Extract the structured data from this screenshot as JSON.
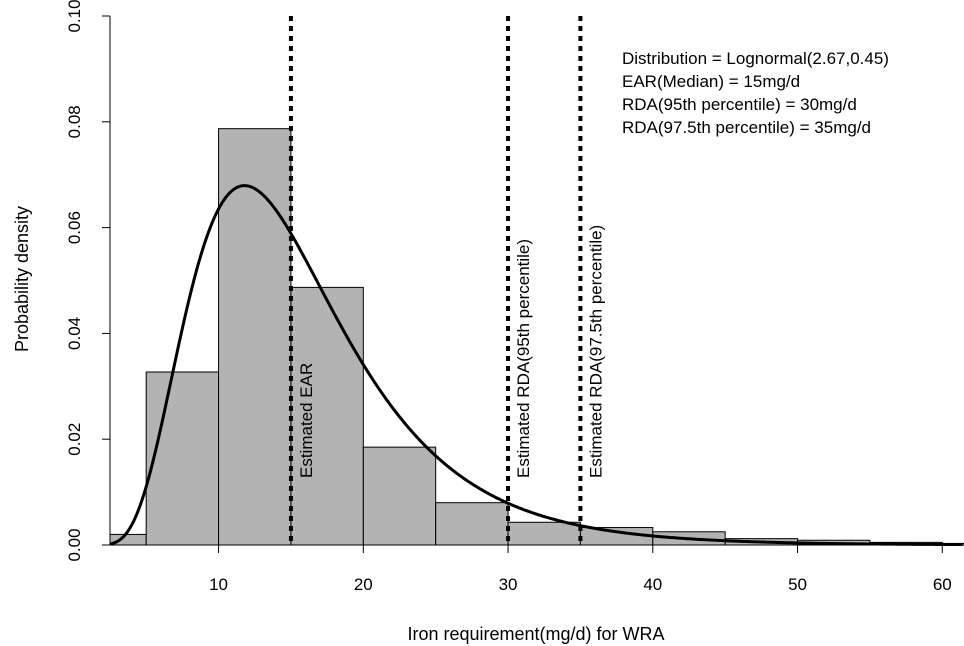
{
  "chart_data": {
    "type": "bar",
    "subtype": "histogram-with-density-curve",
    "xlabel": "Iron requirement(mg/d) for WRA",
    "ylabel": "Probability density",
    "xlim": [
      2.5,
      61.5
    ],
    "ylim": [
      0,
      0.1
    ],
    "x_ticks": [
      10,
      20,
      30,
      40,
      50,
      60
    ],
    "y_ticks": [
      "0.00",
      "0.02",
      "0.04",
      "0.06",
      "0.08",
      "0.10"
    ],
    "bins": [
      {
        "start": 0,
        "end": 5,
        "density": 0.002
      },
      {
        "start": 5,
        "end": 10,
        "density": 0.0327
      },
      {
        "start": 10,
        "end": 15,
        "density": 0.0787
      },
      {
        "start": 15,
        "end": 20,
        "density": 0.0487
      },
      {
        "start": 20,
        "end": 25,
        "density": 0.0185
      },
      {
        "start": 25,
        "end": 30,
        "density": 0.008
      },
      {
        "start": 30,
        "end": 35,
        "density": 0.0043
      },
      {
        "start": 35,
        "end": 40,
        "density": 0.0033
      },
      {
        "start": 40,
        "end": 45,
        "density": 0.0025
      },
      {
        "start": 45,
        "end": 50,
        "density": 0.0012
      },
      {
        "start": 50,
        "end": 55,
        "density": 0.0009
      },
      {
        "start": 55,
        "end": 60,
        "density": 0.0005
      },
      {
        "start": 60,
        "end": 65,
        "density": 0.0003
      }
    ],
    "bar_fill": "#b3b3b3",
    "curve": {
      "distribution": "lognormal",
      "meanlog": 2.67,
      "sdlog": 0.45
    },
    "vertical_lines": [
      {
        "x": 15,
        "label": "Estimated EAR"
      },
      {
        "x": 30,
        "label": "Estimated RDA(95th percentile)"
      },
      {
        "x": 35,
        "label": "Estimated RDA(97.5th percentile)"
      }
    ],
    "legend_position": "top-right",
    "annotations": [
      "Distribution = Lognormal(2.67,0.45)",
      "EAR(Median) = 15mg/d",
      "RDA(95th percentile) = 30mg/d",
      "RDA(97.5th percentile) = 35mg/d"
    ]
  }
}
